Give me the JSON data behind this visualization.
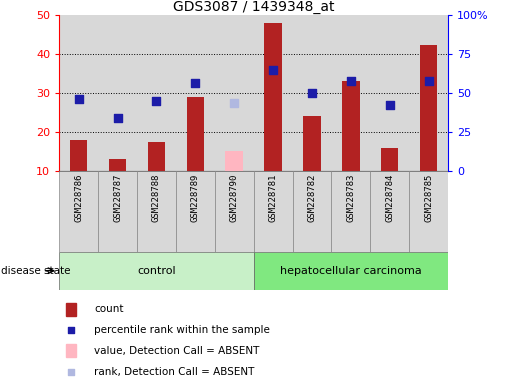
{
  "title": "GDS3087 / 1439348_at",
  "samples": [
    "GSM228786",
    "GSM228787",
    "GSM228788",
    "GSM228789",
    "GSM228790",
    "GSM228781",
    "GSM228782",
    "GSM228783",
    "GSM228784",
    "GSM228785"
  ],
  "count_values": [
    18,
    13,
    17.5,
    29,
    null,
    48,
    24,
    33,
    16,
    42.5
  ],
  "absent_value": [
    null,
    null,
    null,
    null,
    15,
    null,
    null,
    null,
    null,
    null
  ],
  "percentile_values": [
    28.5,
    23.5,
    28,
    32.5,
    null,
    36,
    30,
    33,
    27,
    33
  ],
  "absent_rank": [
    null,
    null,
    null,
    null,
    27.5,
    null,
    null,
    null,
    null,
    null
  ],
  "ylim_left": [
    10,
    50
  ],
  "ylim_right": [
    0,
    100
  ],
  "yticks_left": [
    10,
    20,
    30,
    40,
    50
  ],
  "yticks_right": [
    0,
    25,
    50,
    75,
    100
  ],
  "ytick_right_labels": [
    "0",
    "25",
    "50",
    "75",
    "100%"
  ],
  "bar_color": "#b22222",
  "absent_bar_color": "#ffb6c1",
  "dot_color": "#1c1ca8",
  "absent_dot_color": "#b0b8e0",
  "control_bg": "#c8f0c8",
  "cancer_bg": "#80e880",
  "sample_bg": "#d8d8d8",
  "bar_width": 0.45,
  "dot_size": 28
}
